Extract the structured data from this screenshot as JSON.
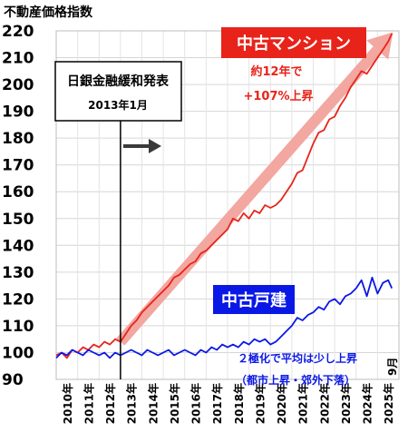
{
  "chart_data": {
    "type": "line",
    "title": "不動産価格指数",
    "ylim": [
      90,
      220
    ],
    "yticks": [
      90,
      100,
      110,
      120,
      130,
      140,
      150,
      160,
      170,
      180,
      190,
      200,
      210,
      220
    ],
    "xlim": [
      2010.0,
      2026.0
    ],
    "xtick_labels": [
      "2010年",
      "2011年",
      "2012年",
      "2013年",
      "2014年",
      "2015年",
      "2016年",
      "2017年",
      "2018年",
      "2019年",
      "2020年",
      "2021年",
      "2022年",
      "2023年",
      "2024年",
      "2025年"
    ],
    "end_label": "9月",
    "grid": true,
    "colors": {
      "condo": "#e8231a",
      "house": "#0a18e6",
      "arrow": "#f2a7a0",
      "callout_condo_bg": "#e8231a",
      "callout_house_bg": "#0a18e6"
    },
    "series": [
      {
        "name": "中古マンション",
        "key": "condo",
        "x": [
          2010.0,
          2010.25,
          2010.5,
          2010.75,
          2011.0,
          2011.25,
          2011.5,
          2011.75,
          2012.0,
          2012.25,
          2012.5,
          2012.75,
          2013.0,
          2013.25,
          2013.5,
          2013.75,
          2014.0,
          2014.25,
          2014.5,
          2014.75,
          2015.0,
          2015.25,
          2015.5,
          2015.75,
          2016.0,
          2016.25,
          2016.5,
          2016.75,
          2017.0,
          2017.25,
          2017.5,
          2017.75,
          2018.0,
          2018.25,
          2018.5,
          2018.75,
          2019.0,
          2019.25,
          2019.5,
          2019.75,
          2020.0,
          2020.25,
          2020.5,
          2020.75,
          2021.0,
          2021.25,
          2021.5,
          2021.75,
          2022.0,
          2022.25,
          2022.5,
          2022.75,
          2023.0,
          2023.25,
          2023.5,
          2023.75,
          2024.0,
          2024.25,
          2024.5,
          2024.75,
          2025.0,
          2025.25,
          2025.5,
          2025.67
        ],
        "values": [
          99,
          100,
          98,
          101,
          100,
          102,
          101,
          103,
          102,
          104,
          103,
          105,
          104,
          107,
          110,
          112,
          115,
          117,
          119,
          121,
          123,
          125,
          128,
          129,
          131,
          133,
          134,
          137,
          138,
          140,
          142,
          144,
          146,
          150,
          149,
          152,
          150,
          153,
          152,
          155,
          154,
          155,
          157,
          160,
          163,
          167,
          168,
          173,
          178,
          182,
          183,
          187,
          188,
          192,
          195,
          199,
          202,
          205,
          204,
          207,
          210,
          213,
          216,
          219
        ]
      },
      {
        "name": "中古戸建",
        "key": "house",
        "x": [
          2010.0,
          2010.25,
          2010.5,
          2010.75,
          2011.0,
          2011.25,
          2011.5,
          2011.75,
          2012.0,
          2012.25,
          2012.5,
          2012.75,
          2013.0,
          2013.25,
          2013.5,
          2013.75,
          2014.0,
          2014.25,
          2014.5,
          2014.75,
          2015.0,
          2015.25,
          2015.5,
          2015.75,
          2016.0,
          2016.25,
          2016.5,
          2016.75,
          2017.0,
          2017.25,
          2017.5,
          2017.75,
          2018.0,
          2018.25,
          2018.5,
          2018.75,
          2019.0,
          2019.25,
          2019.5,
          2019.75,
          2020.0,
          2020.25,
          2020.5,
          2020.75,
          2021.0,
          2021.25,
          2021.5,
          2021.75,
          2022.0,
          2022.25,
          2022.5,
          2022.75,
          2023.0,
          2023.25,
          2023.5,
          2023.75,
          2024.0,
          2024.25,
          2024.5,
          2024.75,
          2025.0,
          2025.25,
          2025.5,
          2025.67
        ],
        "values": [
          98,
          100,
          99,
          101,
          100,
          99,
          101,
          100,
          99,
          100,
          98,
          100,
          99,
          100,
          101,
          100,
          99,
          101,
          100,
          99,
          100,
          101,
          99,
          100,
          101,
          100,
          99,
          101,
          100,
          102,
          101,
          103,
          102,
          103,
          102,
          104,
          103,
          105,
          104,
          105,
          103,
          104,
          106,
          108,
          110,
          113,
          112,
          114,
          115,
          117,
          116,
          119,
          120,
          118,
          121,
          122,
          124,
          127,
          121,
          128,
          122,
          126,
          127,
          124
        ]
      }
    ],
    "annotations": {
      "boj_title": "日銀金融緩和発表",
      "boj_date": "2013年1月",
      "condo_label": "中古マンション",
      "condo_note_1": "約12年で",
      "condo_note_2": "+107%上昇",
      "house_label": "中古戸建",
      "house_note_1": "２極化で平均は少し上昇",
      "house_note_2": "（都市上昇・郊外下落）"
    }
  }
}
